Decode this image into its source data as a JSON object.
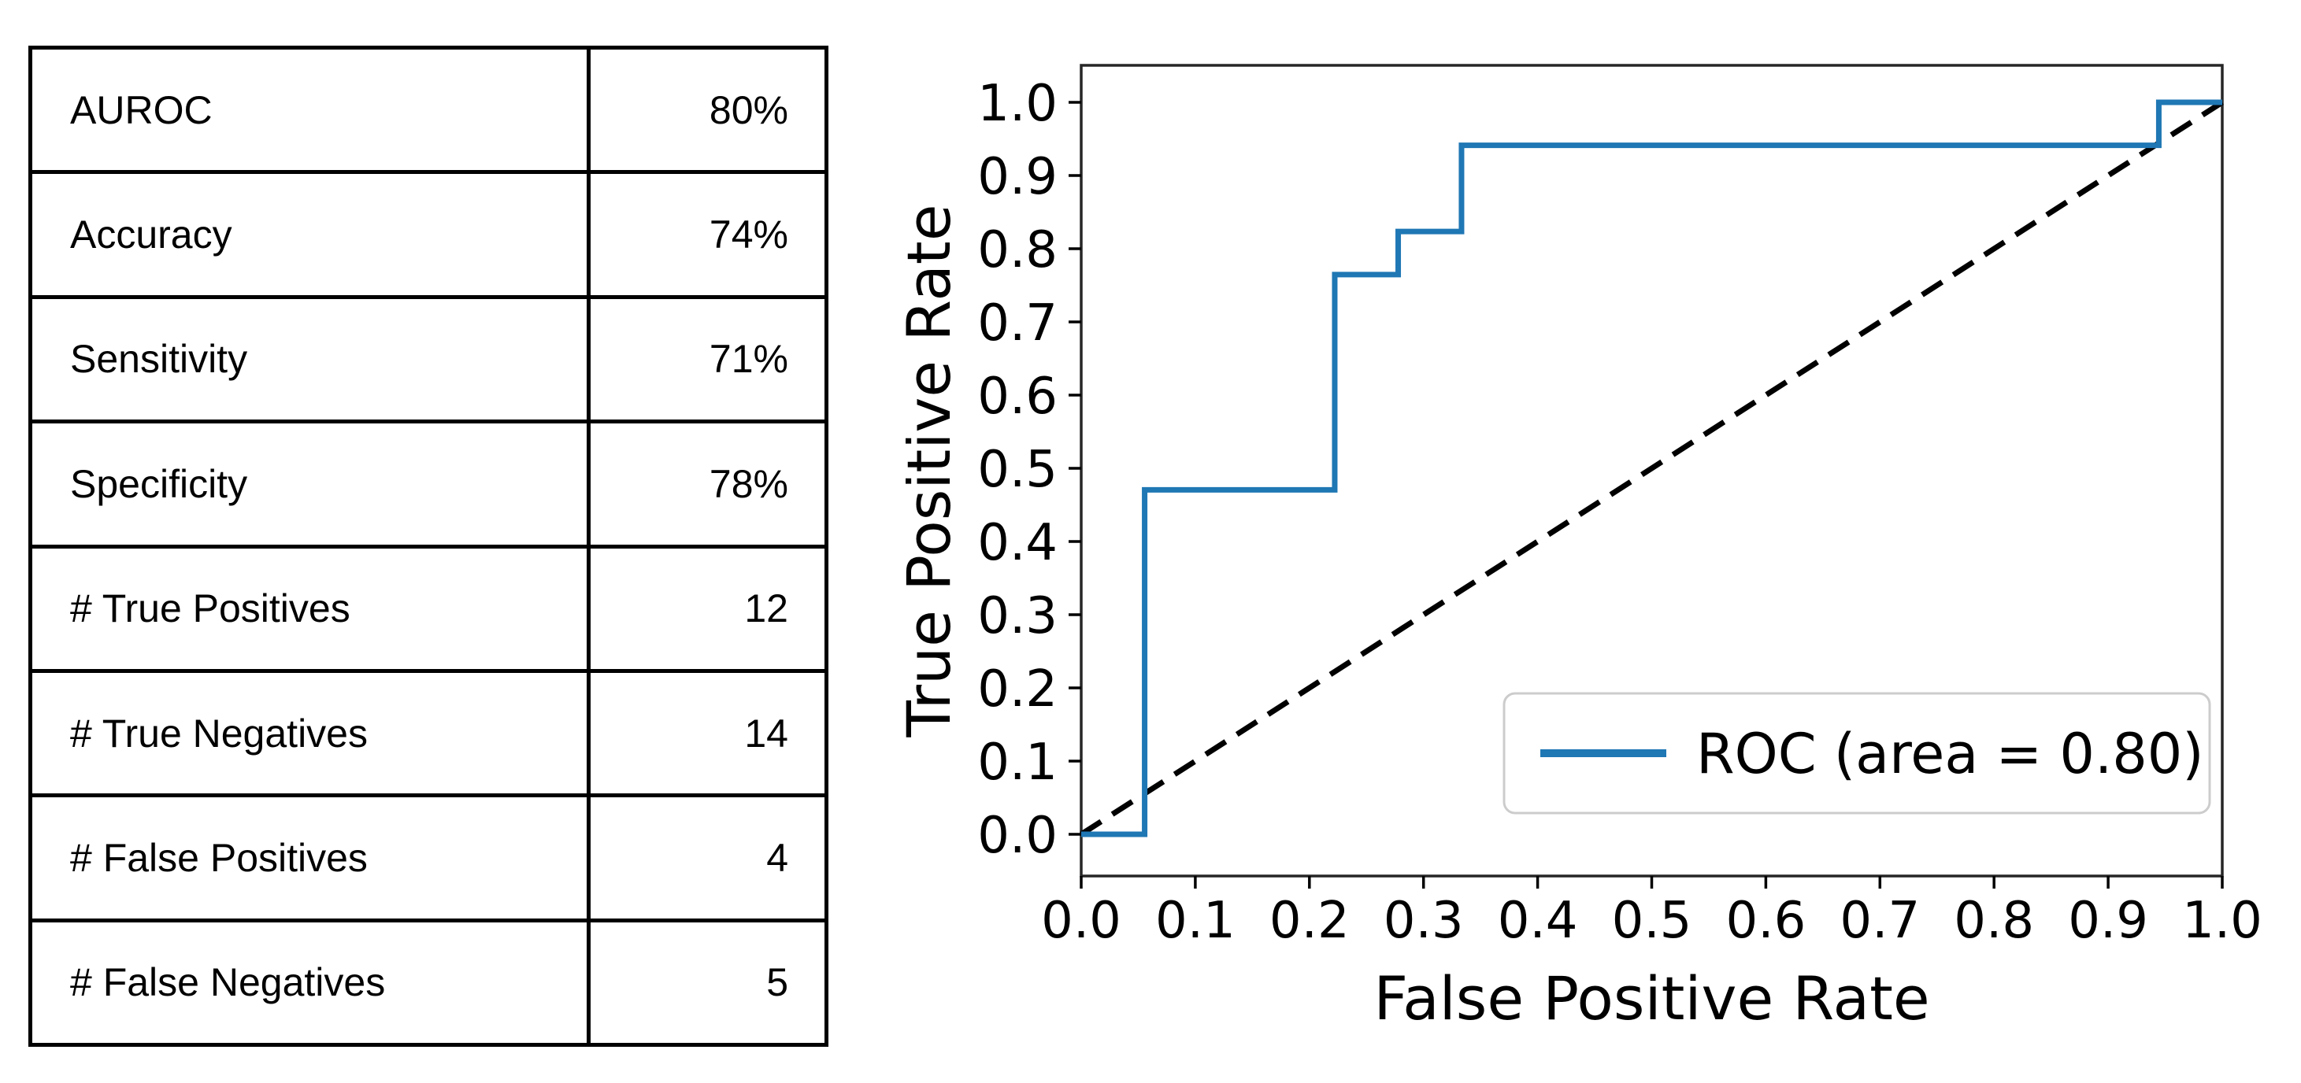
{
  "figure": {
    "background": "#ffffff"
  },
  "metrics_table": {
    "rows": [
      {
        "label": "AUROC",
        "value": "80%"
      },
      {
        "label": "Accuracy",
        "value": "74%"
      },
      {
        "label": "Sensitivity",
        "value": "71%"
      },
      {
        "label": "Specificity",
        "value": "78%"
      },
      {
        "label": "# True Positives",
        "value": "12"
      },
      {
        "label": "# True Negatives",
        "value": "14"
      },
      {
        "label": "# False Positives",
        "value": "4"
      },
      {
        "label": "# False Negatives",
        "value": "5"
      }
    ]
  },
  "chart_data": {
    "type": "line",
    "subtype": "roc_step_curve",
    "title": "",
    "xlabel": "False Positive Rate",
    "ylabel": "True Positive Rate",
    "xlim": [
      0.0,
      1.0
    ],
    "ylim": [
      0.0,
      1.0
    ],
    "grid": false,
    "xticks": [
      "0.0",
      "0.1",
      "0.2",
      "0.3",
      "0.4",
      "0.5",
      "0.6",
      "0.7",
      "0.8",
      "0.9",
      "1.0"
    ],
    "yticks": [
      "0.0",
      "0.1",
      "0.2",
      "0.3",
      "0.4",
      "0.5",
      "0.6",
      "0.7",
      "0.8",
      "0.9",
      "1.0"
    ],
    "series": [
      {
        "name": "ROC (area = 0.80)",
        "color": "#1f77b4",
        "style": "solid",
        "points": [
          [
            0.0,
            0.0
          ],
          [
            0.0556,
            0.0
          ],
          [
            0.0556,
            0.4706
          ],
          [
            0.2222,
            0.4706
          ],
          [
            0.2222,
            0.7647
          ],
          [
            0.2778,
            0.7647
          ],
          [
            0.2778,
            0.8235
          ],
          [
            0.3333,
            0.8235
          ],
          [
            0.3333,
            0.9412
          ],
          [
            0.9444,
            0.9412
          ],
          [
            0.9444,
            1.0
          ],
          [
            1.0,
            1.0
          ]
        ]
      },
      {
        "name": "chance-diagonal",
        "color": "#000000",
        "style": "dashed",
        "points": [
          [
            0.0,
            0.0
          ],
          [
            1.0,
            1.0
          ]
        ]
      }
    ],
    "legend": {
      "label": "ROC (area = 0.80)",
      "position": "lower right",
      "line_color": "#1f77b4"
    },
    "auc": 0.8
  }
}
